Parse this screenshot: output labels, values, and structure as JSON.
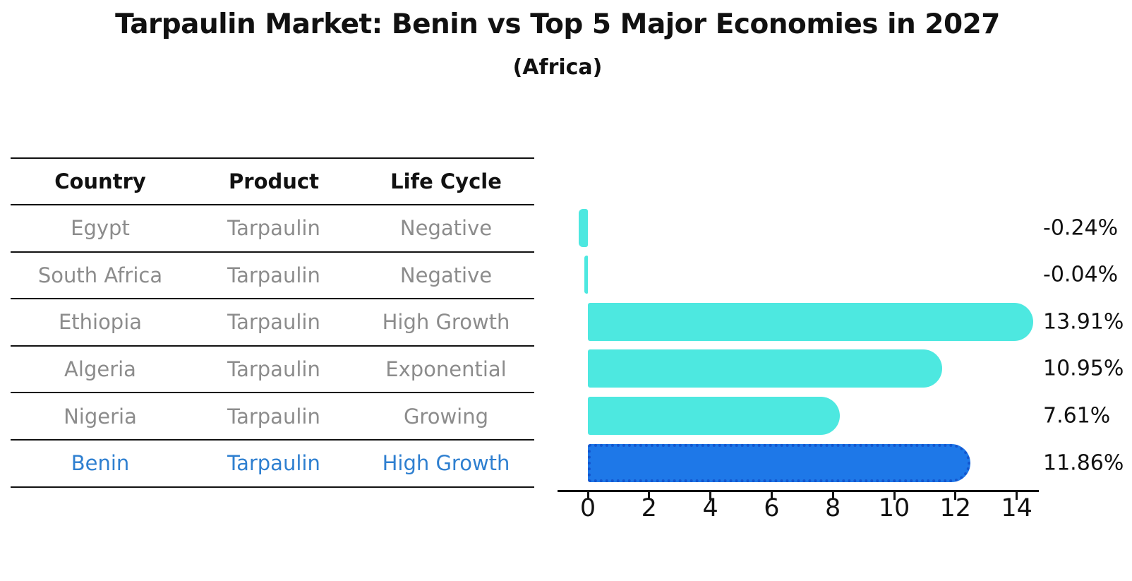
{
  "header": {
    "title": "Tarpaulin Market: Benin vs Top 5 Major Economies in 2027",
    "subtitle": "(Africa)"
  },
  "table": {
    "headers": [
      "Country",
      "Product",
      "Life Cycle"
    ],
    "rows": [
      {
        "country": "Egypt",
        "product": "Tarpaulin",
        "life_cycle": "Negative",
        "highlight": false
      },
      {
        "country": "South Africa",
        "product": "Tarpaulin",
        "life_cycle": "Negative",
        "highlight": false
      },
      {
        "country": "Ethiopia",
        "product": "Tarpaulin",
        "life_cycle": "High Growth",
        "highlight": false
      },
      {
        "country": "Algeria",
        "product": "Tarpaulin",
        "life_cycle": "Exponential",
        "highlight": false
      },
      {
        "country": "Nigeria",
        "product": "Tarpaulin",
        "life_cycle": "Growing",
        "highlight": false
      },
      {
        "country": "Benin",
        "product": "Tarpaulin",
        "life_cycle": "High Growth",
        "highlight": true
      }
    ]
  },
  "chart_data": {
    "type": "bar",
    "orientation": "horizontal",
    "categories": [
      "Egypt",
      "South Africa",
      "Ethiopia",
      "Algeria",
      "Nigeria",
      "Benin"
    ],
    "values": [
      -0.24,
      -0.04,
      13.91,
      10.95,
      7.61,
      11.86
    ],
    "value_labels": [
      "-0.24%",
      "-0.04%",
      "13.91%",
      "10.95%",
      "7.61%",
      "11.86%"
    ],
    "x_ticks": [
      "0",
      "2",
      "4",
      "6",
      "8",
      "10",
      "12",
      "14"
    ],
    "xlim": [
      -1,
      14.7
    ],
    "grid": false,
    "legend": "none",
    "highlight_category": "Benin",
    "title": "Tarpaulin Market: Benin vs Top 5 Major Economies in 2027",
    "subtitle": "(Africa)",
    "xlabel": "",
    "ylabel": ""
  },
  "colors": {
    "bar_normal": "#4DE8E0",
    "bar_highlight_fill": "#1E78E8",
    "bar_highlight_edge": "#1456CE",
    "highlight_text": "#2E7FD0",
    "muted_text": "#8c8c8c",
    "main_text": "#111111"
  }
}
